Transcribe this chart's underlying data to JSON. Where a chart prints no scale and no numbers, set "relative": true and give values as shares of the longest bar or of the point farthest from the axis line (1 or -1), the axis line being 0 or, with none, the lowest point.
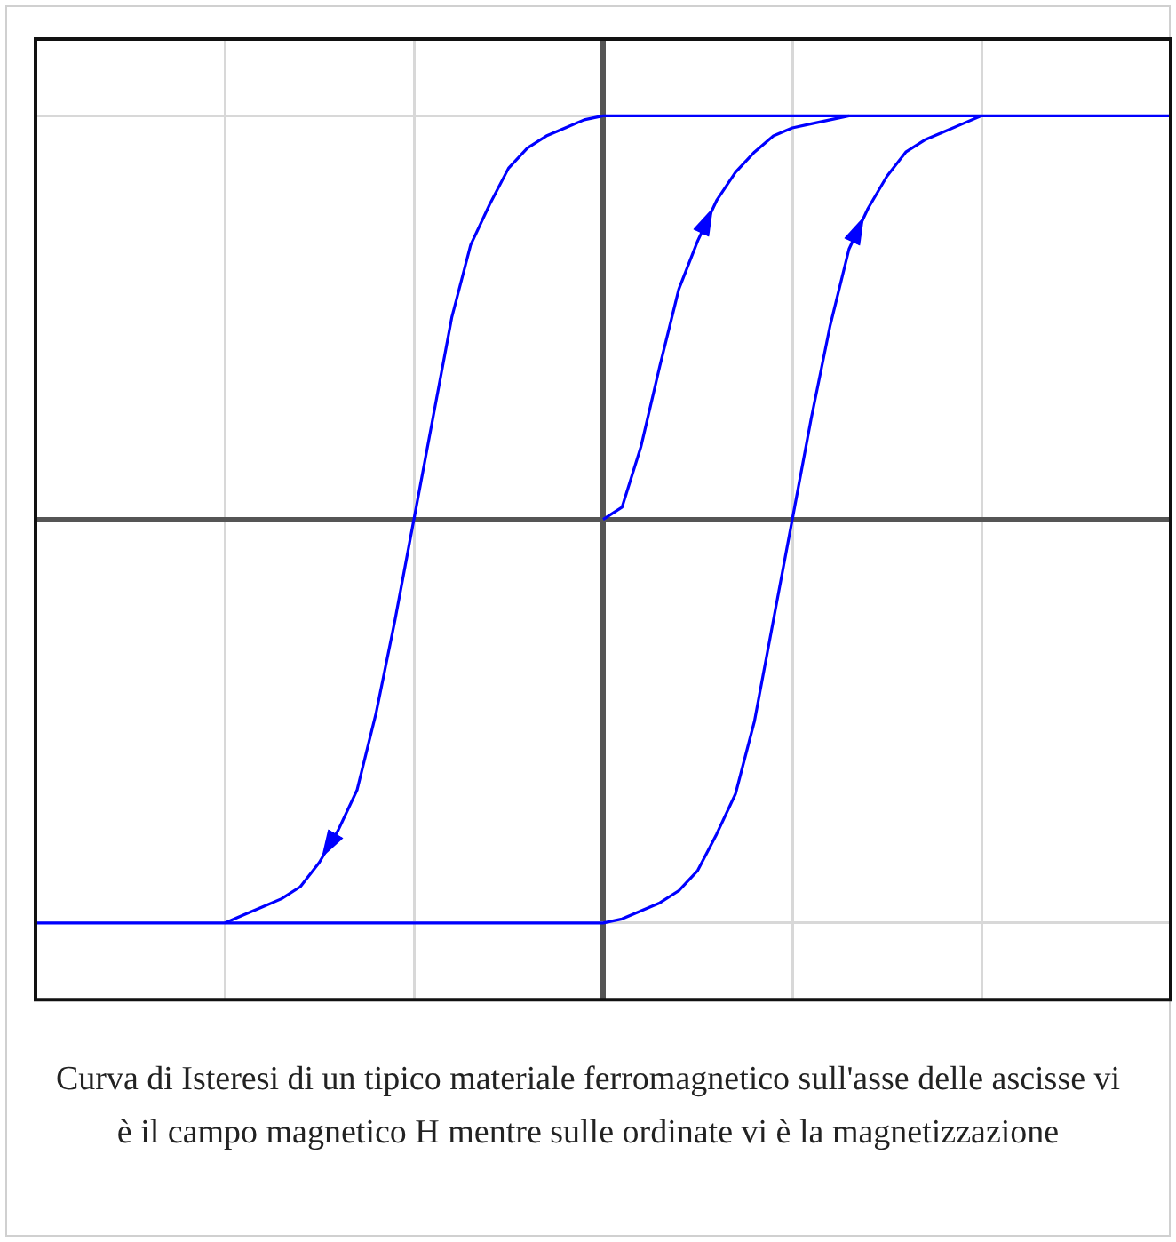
{
  "chart_data": {
    "type": "line",
    "relative": true,
    "grid": true,
    "marker": "none",
    "line_style": "solid",
    "categories": [
      null,
      null,
      null,
      null,
      null,
      null,
      null,
      null,
      null,
      null,
      null,
      null,
      null,
      null,
      null,
      null,
      null,
      null,
      null,
      null,
      null,
      null,
      null,
      null,
      null,
      null,
      null,
      null,
      null,
      null,
      null,
      null,
      null,
      null,
      null,
      null,
      null,
      null,
      null,
      null,
      null,
      null,
      null,
      null,
      null,
      null,
      null,
      null,
      null,
      null,
      null,
      null,
      null,
      null,
      null,
      null,
      null,
      null,
      null,
      null,
      null
    ],
    "series": [
      {
        "color": "#0000ff",
        "values": [
          null,
          null,
          null,
          null,
          null,
          null,
          null,
          null,
          null,
          null,
          -1,
          -0.98,
          -0.96,
          -0.94,
          -0.91,
          -0.85,
          -0.77,
          -0.67,
          -0.48,
          -0.25,
          0,
          0.25,
          0.5,
          0.68,
          0.78,
          0.87,
          0.92,
          0.95,
          0.97,
          0.99,
          1,
          1,
          1,
          1,
          1,
          1,
          1,
          1,
          1,
          1,
          1,
          1,
          1,
          1,
          1,
          1,
          1,
          1,
          1,
          1,
          1,
          1,
          1,
          1,
          1,
          1,
          1,
          1,
          1,
          1,
          1
        ]
      },
      {
        "color": "#0000ff",
        "values": [
          -1,
          -1,
          -1,
          -1,
          -1,
          -1,
          -1,
          -1,
          -1,
          -1,
          -1,
          -1,
          -1,
          -1,
          -1,
          -1,
          -1,
          -1,
          -1,
          -1,
          -1,
          -1,
          -1,
          -1,
          -1,
          -1,
          -1,
          -1,
          -1,
          -1,
          -1,
          -0.99,
          -0.97,
          -0.95,
          -0.92,
          -0.87,
          -0.78,
          -0.68,
          -0.5,
          -0.25,
          0,
          0.25,
          0.48,
          0.67,
          0.77,
          0.85,
          0.91,
          0.94,
          0.96,
          0.98,
          1,
          null,
          null,
          null,
          null,
          null,
          null,
          null,
          null,
          null,
          null
        ]
      },
      {
        "color": "#0000ff",
        "values": [
          null,
          null,
          null,
          null,
          null,
          null,
          null,
          null,
          null,
          null,
          null,
          null,
          null,
          null,
          null,
          null,
          null,
          null,
          null,
          null,
          null,
          null,
          null,
          null,
          null,
          null,
          null,
          null,
          null,
          null,
          0,
          0.03,
          0.18,
          0.38,
          0.57,
          0.69,
          0.79,
          0.86,
          0.91,
          0.95,
          0.97,
          0.98,
          0.99,
          1,
          null,
          null,
          null,
          null,
          null,
          null,
          null,
          null,
          null,
          null,
          null,
          null,
          null,
          null,
          null,
          null,
          null
        ]
      }
    ],
    "annotations": [
      "Curva di Isteresi di un tipico materiale ferromagnetico sull'asse delle ascisse vi è il campo magnetico H mentre sulle ordinate vi è la magnetizzazione"
    ]
  }
}
